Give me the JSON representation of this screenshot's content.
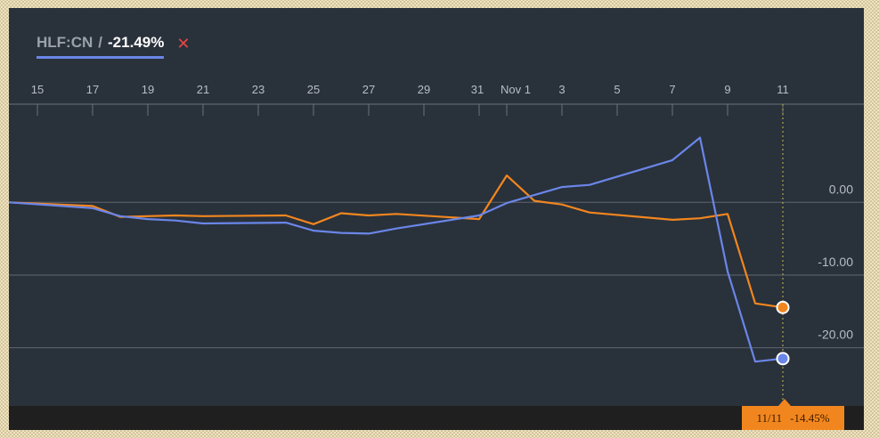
{
  "legend": {
    "symbol": "HLF:CN",
    "separator": "/",
    "change": "-21.49%",
    "close_glyph": "✕",
    "close_icon": "close-icon"
  },
  "tooltip": {
    "date": "11/11",
    "value": "-14.45%"
  },
  "colors": {
    "background": "#29313b",
    "primary_series": "#6a86e8",
    "comparison_series": "#f2861e",
    "grid": "#5f666f",
    "close": "#e84545"
  },
  "chart_data": {
    "type": "line",
    "title": "",
    "xlabel": "",
    "ylabel": "",
    "x_ticks": [
      "15",
      "17",
      "19",
      "21",
      "23",
      "25",
      "27",
      "29",
      "31",
      "Nov 1",
      "3",
      "5",
      "7",
      "9",
      "11"
    ],
    "y_ticks": [
      "0.00",
      "-10.00",
      "-20.00"
    ],
    "y_tick_values": [
      0,
      -10,
      -20
    ],
    "ylim": [
      -28,
      13.5
    ],
    "grid": "horizontal",
    "crosshair_at": "11",
    "series": [
      {
        "name": "HLF:CN",
        "color": "#6a86e8",
        "points": [
          [
            "Oct 14",
            0.0
          ],
          [
            "Oct 17",
            -0.8
          ],
          [
            "Oct 18",
            -1.9
          ],
          [
            "Oct 19",
            -2.3
          ],
          [
            "Oct 20",
            -2.5
          ],
          [
            "Oct 21",
            -2.9
          ],
          [
            "Oct 24",
            -2.8
          ],
          [
            "Oct 25",
            -3.9
          ],
          [
            "Oct 26",
            -4.2
          ],
          [
            "Oct 27",
            -4.3
          ],
          [
            "Oct 28",
            -3.6
          ],
          [
            "Oct 31",
            -1.8
          ],
          [
            "Nov 1",
            -0.1
          ],
          [
            "Nov 2",
            1.0
          ],
          [
            "Nov 3",
            2.1
          ],
          [
            "Nov 4",
            2.4
          ],
          [
            "Nov 7",
            5.8
          ],
          [
            "Nov 8",
            8.9
          ],
          [
            "Nov 9",
            -9.5
          ],
          [
            "Nov 10",
            -21.9
          ],
          [
            "Nov 11",
            -21.49
          ]
        ]
      },
      {
        "name": "",
        "color": "#f2861e",
        "points": [
          [
            "Oct 14",
            0.0
          ],
          [
            "Oct 17",
            -0.5
          ],
          [
            "Oct 18",
            -2.0
          ],
          [
            "Oct 19",
            -1.9
          ],
          [
            "Oct 20",
            -1.8
          ],
          [
            "Oct 21",
            -1.9
          ],
          [
            "Oct 24",
            -1.8
          ],
          [
            "Oct 25",
            -3.0
          ],
          [
            "Oct 26",
            -1.5
          ],
          [
            "Oct 27",
            -1.8
          ],
          [
            "Oct 28",
            -1.6
          ],
          [
            "Oct 31",
            -2.3
          ],
          [
            "Nov 1",
            3.7
          ],
          [
            "Nov 2",
            0.2
          ],
          [
            "Nov 3",
            -0.3
          ],
          [
            "Nov 4",
            -1.4
          ],
          [
            "Nov 7",
            -2.4
          ],
          [
            "Nov 8",
            -2.2
          ],
          [
            "Nov 9",
            -1.6
          ],
          [
            "Nov 10",
            -13.9
          ],
          [
            "Nov 11",
            -14.45
          ]
        ]
      }
    ]
  }
}
